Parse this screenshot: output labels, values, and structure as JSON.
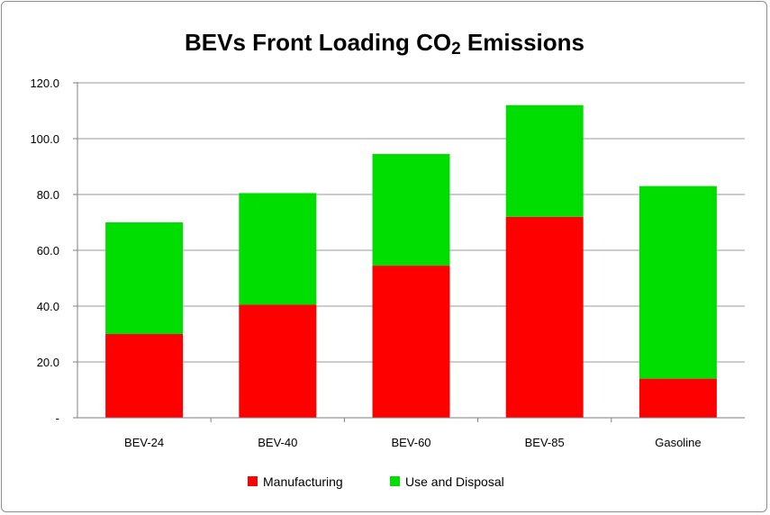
{
  "chart_data": {
    "type": "bar",
    "stacked": true,
    "title_main": "BEVs Front Loading CO",
    "title_sub": "2",
    "title_tail": " Emissions",
    "categories": [
      "BEV-24",
      "BEV-40",
      "BEV-60",
      "BEV-85",
      "Gasoline"
    ],
    "series": [
      {
        "name": "Manufacturing",
        "color": "#ff0000",
        "values": [
          30,
          40.5,
          54.5,
          72,
          14
        ]
      },
      {
        "name": "Use and Disposal",
        "color": "#00dd00",
        "values": [
          40,
          40,
          40,
          40,
          69
        ]
      }
    ],
    "y_ticks": [
      "-",
      "20.0",
      "40.0",
      "60.0",
      "80.0",
      "100.0",
      "120.0"
    ],
    "ylim": [
      0,
      120
    ],
    "grid": true,
    "legend_position": "bottom"
  }
}
